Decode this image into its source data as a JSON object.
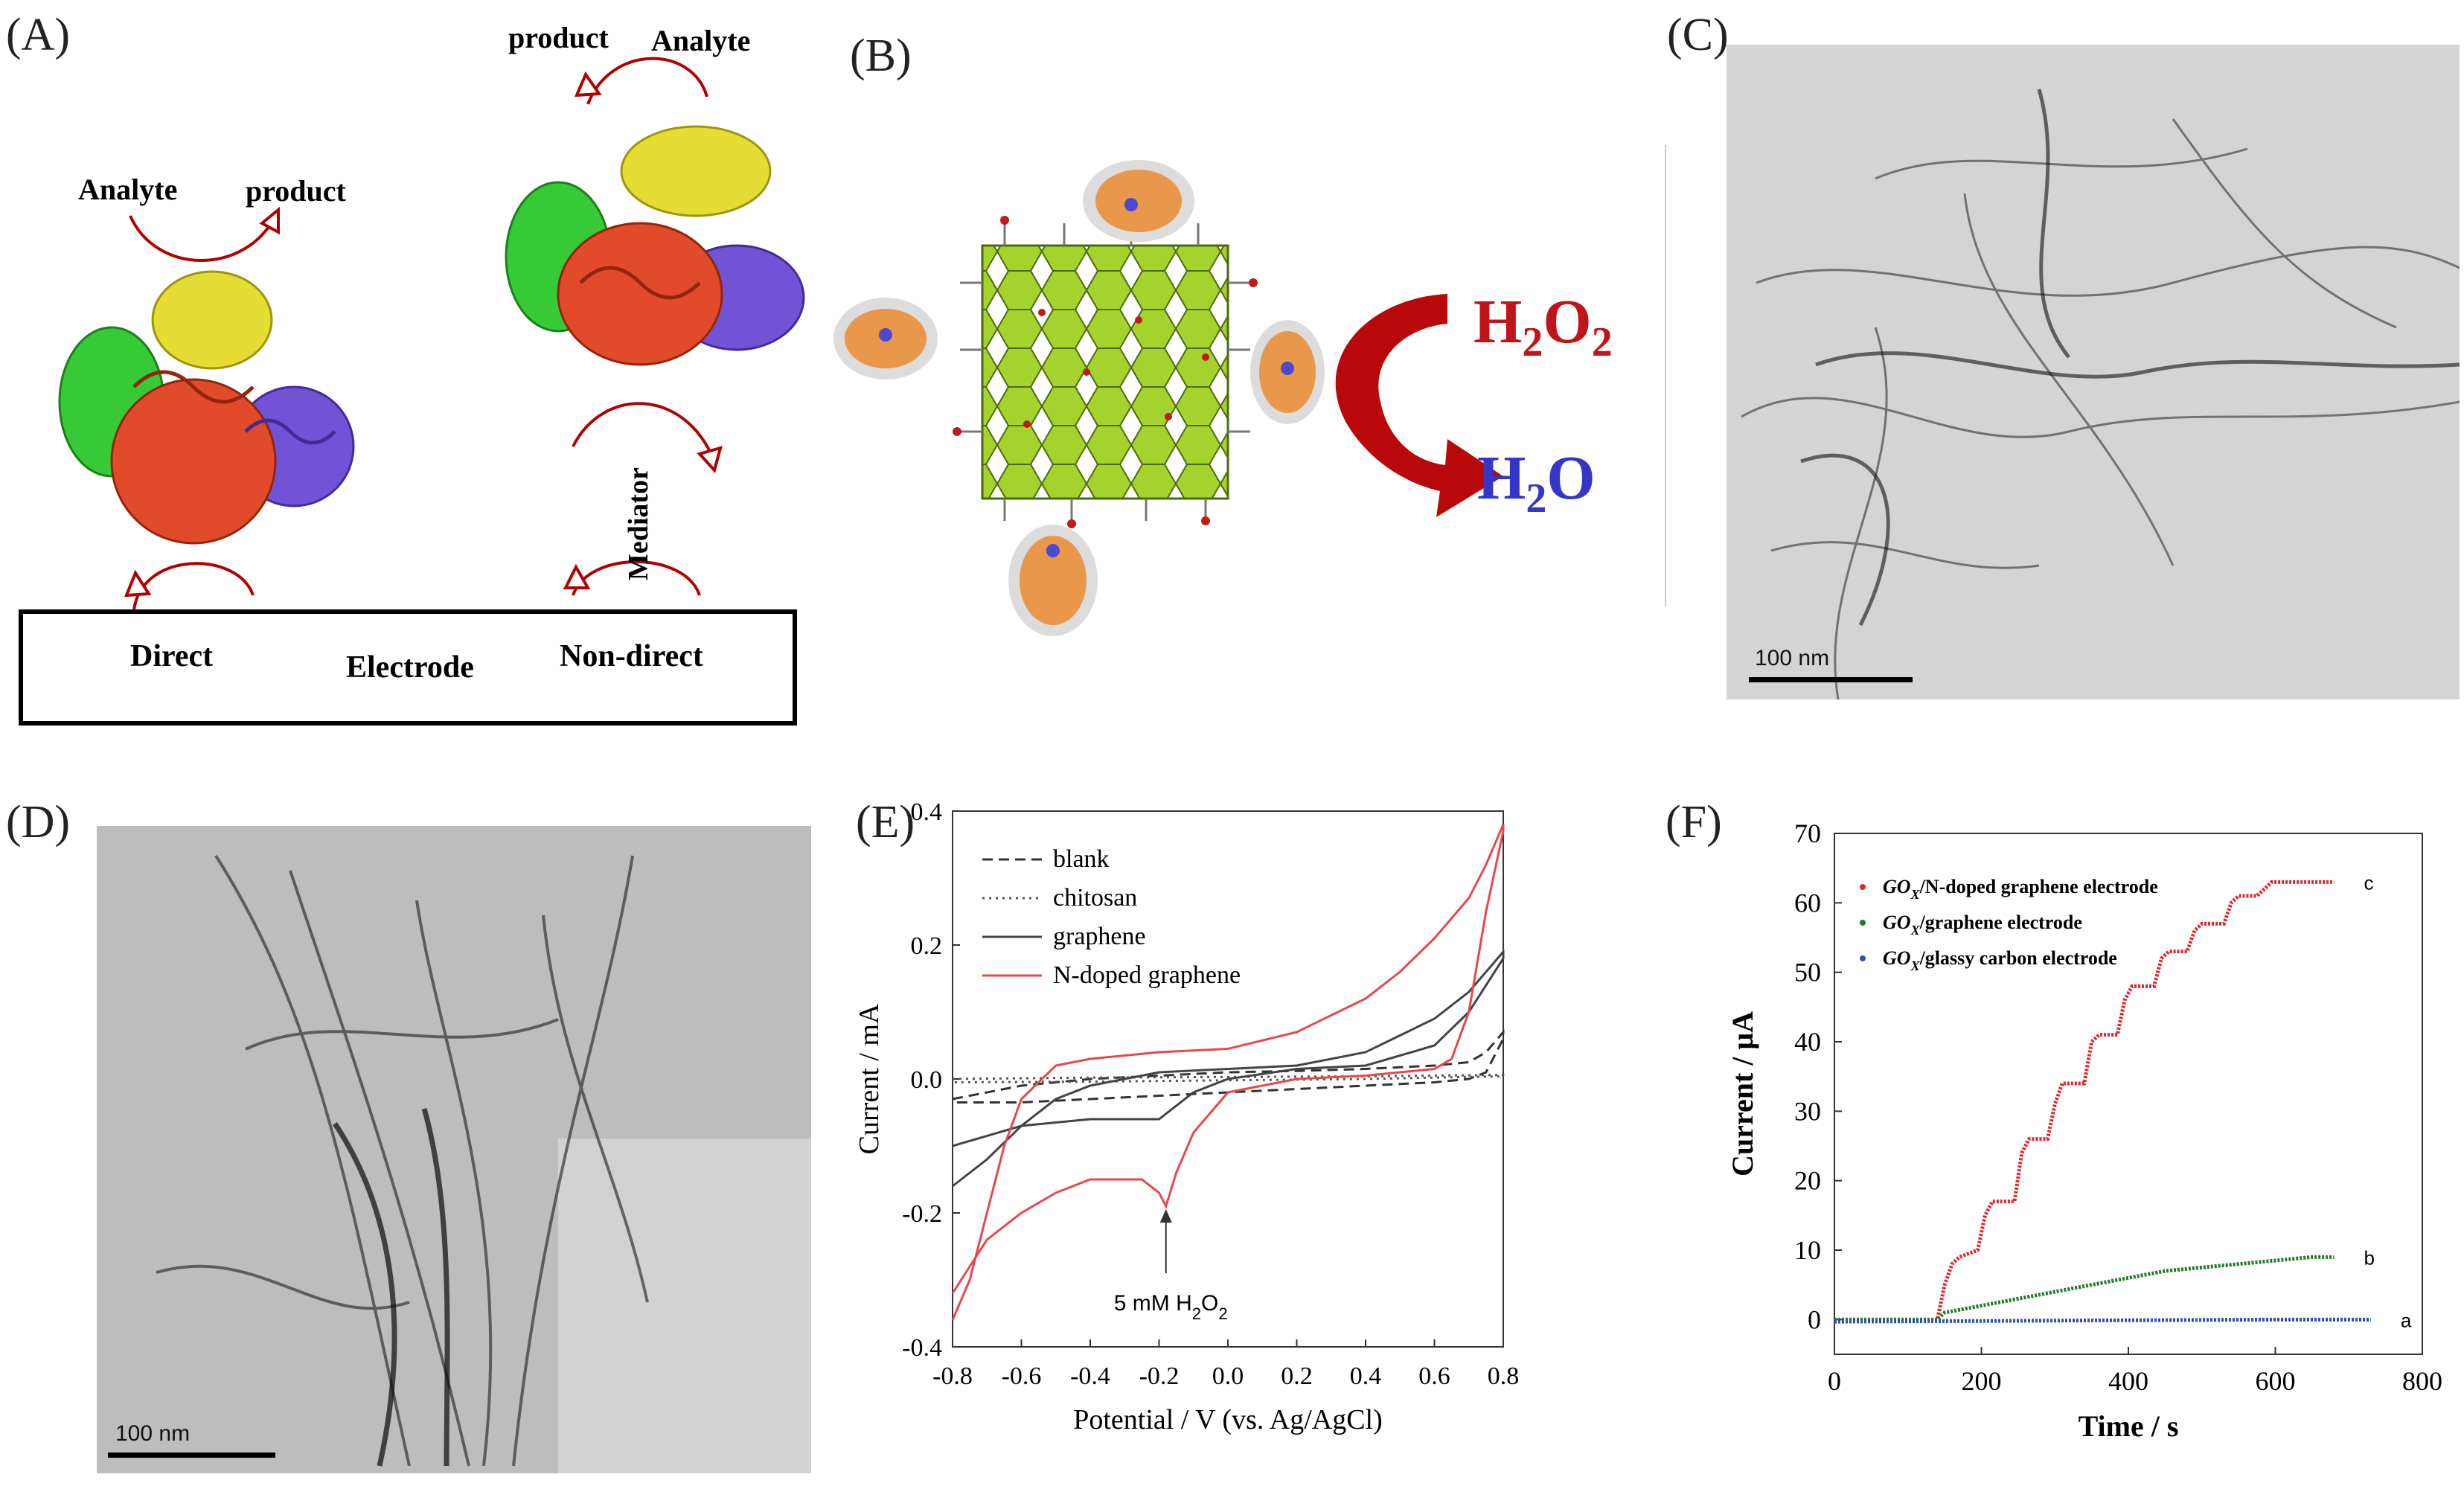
{
  "panel_labels": {
    "a": "(A)",
    "b": "(B)",
    "c": "(C)",
    "d": "(D)",
    "e": "(E)",
    "f": "(F)"
  },
  "panel_a": {
    "left_analyte": "Analyte",
    "left_product": "product",
    "right_product": "product",
    "right_analyte": "Analyte",
    "mediator": "Mediator",
    "direct": "Direct",
    "electrode": "Electrode",
    "non_direct": "Non-direct"
  },
  "panel_b": {
    "h2o2_main": "H",
    "h2o2_sub1": "2",
    "h2o2_mid": "O",
    "h2o2_sub2": "2",
    "h2o_main": "H",
    "h2o_sub": "2",
    "h2o_end": "O"
  },
  "panel_c": {
    "scale": "100 nm"
  },
  "panel_d": {
    "scale": "100 nm"
  },
  "colors": {
    "arrow_red": "#b00000",
    "graphene_green": "#9acd32",
    "h2o2_red": "#c0141a",
    "h2o_blue": "#3535c8",
    "cv_red": "#e8474d",
    "it_red": "#e0262c",
    "it_green": "#1e7a2e",
    "it_blue": "#2e4fb8"
  },
  "chart_data": [
    {
      "type": "line",
      "xlabel": "Potential / V (vs. Ag/AgCl)",
      "ylabel": "Current / mA",
      "xlim": [
        -0.8,
        0.8
      ],
      "ylim": [
        -0.4,
        0.4
      ],
      "xticks": [
        "-0.8",
        "-0.6",
        "-0.4",
        "-0.2",
        "0.0",
        "0.2",
        "0.4",
        "0.6",
        "0.8"
      ],
      "yticks": [
        "0.4",
        "0.2",
        "0.0",
        "-0.2",
        "-0.4"
      ],
      "annotation": {
        "text": "5 mM H",
        "sub": "2",
        "end": "O",
        "sub2": "2",
        "x": -0.18,
        "y": -0.19
      },
      "legend_position": "top-left",
      "series": [
        {
          "name": "blank",
          "style": "dashed",
          "color": "#333333",
          "x": [
            -0.8,
            -0.6,
            -0.4,
            -0.2,
            0.0,
            0.2,
            0.4,
            0.6,
            0.7,
            0.75,
            0.8,
            0.8,
            0.75,
            0.7,
            0.6,
            0.4,
            0.2,
            0.0,
            -0.2,
            -0.4,
            -0.6,
            -0.8
          ],
          "y": [
            -0.03,
            -0.01,
            0.0,
            0.005,
            0.01,
            0.012,
            0.015,
            0.02,
            0.025,
            0.04,
            0.07,
            0.06,
            0.01,
            0.0,
            -0.005,
            -0.01,
            -0.015,
            -0.02,
            -0.025,
            -0.03,
            -0.035,
            -0.035
          ]
        },
        {
          "name": "chitosan",
          "style": "dotted",
          "color": "#555555",
          "x": [
            -0.8,
            -0.4,
            0.0,
            0.4,
            0.8,
            0.8,
            0.4,
            0.0,
            -0.4,
            -0.8
          ],
          "y": [
            0.0,
            0.002,
            0.003,
            0.004,
            0.006,
            0.004,
            0.0,
            -0.002,
            -0.004,
            -0.005
          ]
        },
        {
          "name": "graphene",
          "style": "solid",
          "color": "#444444",
          "x": [
            -0.8,
            -0.7,
            -0.6,
            -0.5,
            -0.4,
            -0.2,
            0.0,
            0.2,
            0.4,
            0.6,
            0.7,
            0.8,
            0.8,
            0.7,
            0.6,
            0.4,
            0.2,
            0.0,
            -0.1,
            -0.2,
            -0.3,
            -0.4,
            -0.6,
            -0.8
          ],
          "y": [
            -0.16,
            -0.12,
            -0.07,
            -0.03,
            -0.01,
            0.01,
            0.015,
            0.02,
            0.04,
            0.09,
            0.13,
            0.19,
            0.18,
            0.1,
            0.05,
            0.02,
            0.015,
            0.0,
            -0.02,
            -0.06,
            -0.06,
            -0.06,
            -0.07,
            -0.1
          ]
        },
        {
          "name": "N-doped graphene",
          "style": "solid",
          "color": "#e8474d",
          "x": [
            -0.8,
            -0.75,
            -0.7,
            -0.65,
            -0.6,
            -0.5,
            -0.4,
            -0.2,
            0.0,
            0.2,
            0.4,
            0.5,
            0.6,
            0.7,
            0.75,
            0.8,
            0.8,
            0.75,
            0.7,
            0.65,
            0.6,
            0.5,
            0.4,
            0.2,
            0.0,
            -0.1,
            -0.15,
            -0.18,
            -0.2,
            -0.25,
            -0.3,
            -0.4,
            -0.5,
            -0.6,
            -0.7,
            -0.75,
            -0.8
          ],
          "y": [
            -0.36,
            -0.3,
            -0.2,
            -0.1,
            -0.03,
            0.02,
            0.03,
            0.04,
            0.045,
            0.07,
            0.12,
            0.16,
            0.21,
            0.27,
            0.32,
            0.38,
            0.37,
            0.25,
            0.1,
            0.03,
            0.015,
            0.01,
            0.005,
            0.0,
            -0.02,
            -0.08,
            -0.14,
            -0.19,
            -0.17,
            -0.15,
            -0.15,
            -0.15,
            -0.17,
            -0.2,
            -0.24,
            -0.28,
            -0.32
          ]
        }
      ]
    },
    {
      "type": "line",
      "xlabel": "Time / s",
      "ylabel": "Current / μA",
      "xlim": [
        0,
        800
      ],
      "ylim": [
        -5,
        70
      ],
      "xticks": [
        "0",
        "200",
        "400",
        "600",
        "800"
      ],
      "yticks": [
        "70",
        "60",
        "50",
        "40",
        "30",
        "20",
        "10",
        "0"
      ],
      "legend_position": "top-left",
      "series": [
        {
          "name": "GO",
          "sub": "X",
          "suffix": "/N-doped graphene electrode",
          "end_label": "c",
          "color": "#e0262c",
          "x": [
            0,
            140,
            150,
            160,
            170,
            195,
            205,
            215,
            245,
            255,
            265,
            290,
            300,
            310,
            340,
            350,
            360,
            385,
            395,
            405,
            435,
            445,
            455,
            480,
            490,
            500,
            530,
            540,
            550,
            575,
            585,
            595,
            620,
            630,
            680
          ],
          "y": [
            0,
            0,
            5,
            8,
            9,
            10,
            15,
            17,
            17,
            24,
            26,
            26,
            31,
            34,
            34,
            40,
            41,
            41,
            46,
            48,
            48,
            52,
            53,
            53,
            56,
            57,
            57,
            60,
            61,
            61,
            62,
            63,
            63,
            63,
            63
          ]
        },
        {
          "name": "GO",
          "sub": "X",
          "suffix": "/graphene electrode",
          "end_label": "b",
          "color": "#1e7a2e",
          "x": [
            0,
            140,
            150,
            200,
            250,
            300,
            350,
            400,
            450,
            500,
            550,
            600,
            650,
            680
          ],
          "y": [
            0,
            0,
            1,
            2,
            3,
            4,
            5,
            6,
            7,
            7.5,
            8,
            8.5,
            9,
            9
          ]
        },
        {
          "name": "GO",
          "sub": "X",
          "suffix": "/glassy carbon electrode",
          "end_label": "a",
          "color": "#2e4fb8",
          "x": [
            0,
            200,
            400,
            600,
            730
          ],
          "y": [
            -0.3,
            -0.2,
            -0.1,
            0,
            0
          ]
        }
      ]
    }
  ]
}
